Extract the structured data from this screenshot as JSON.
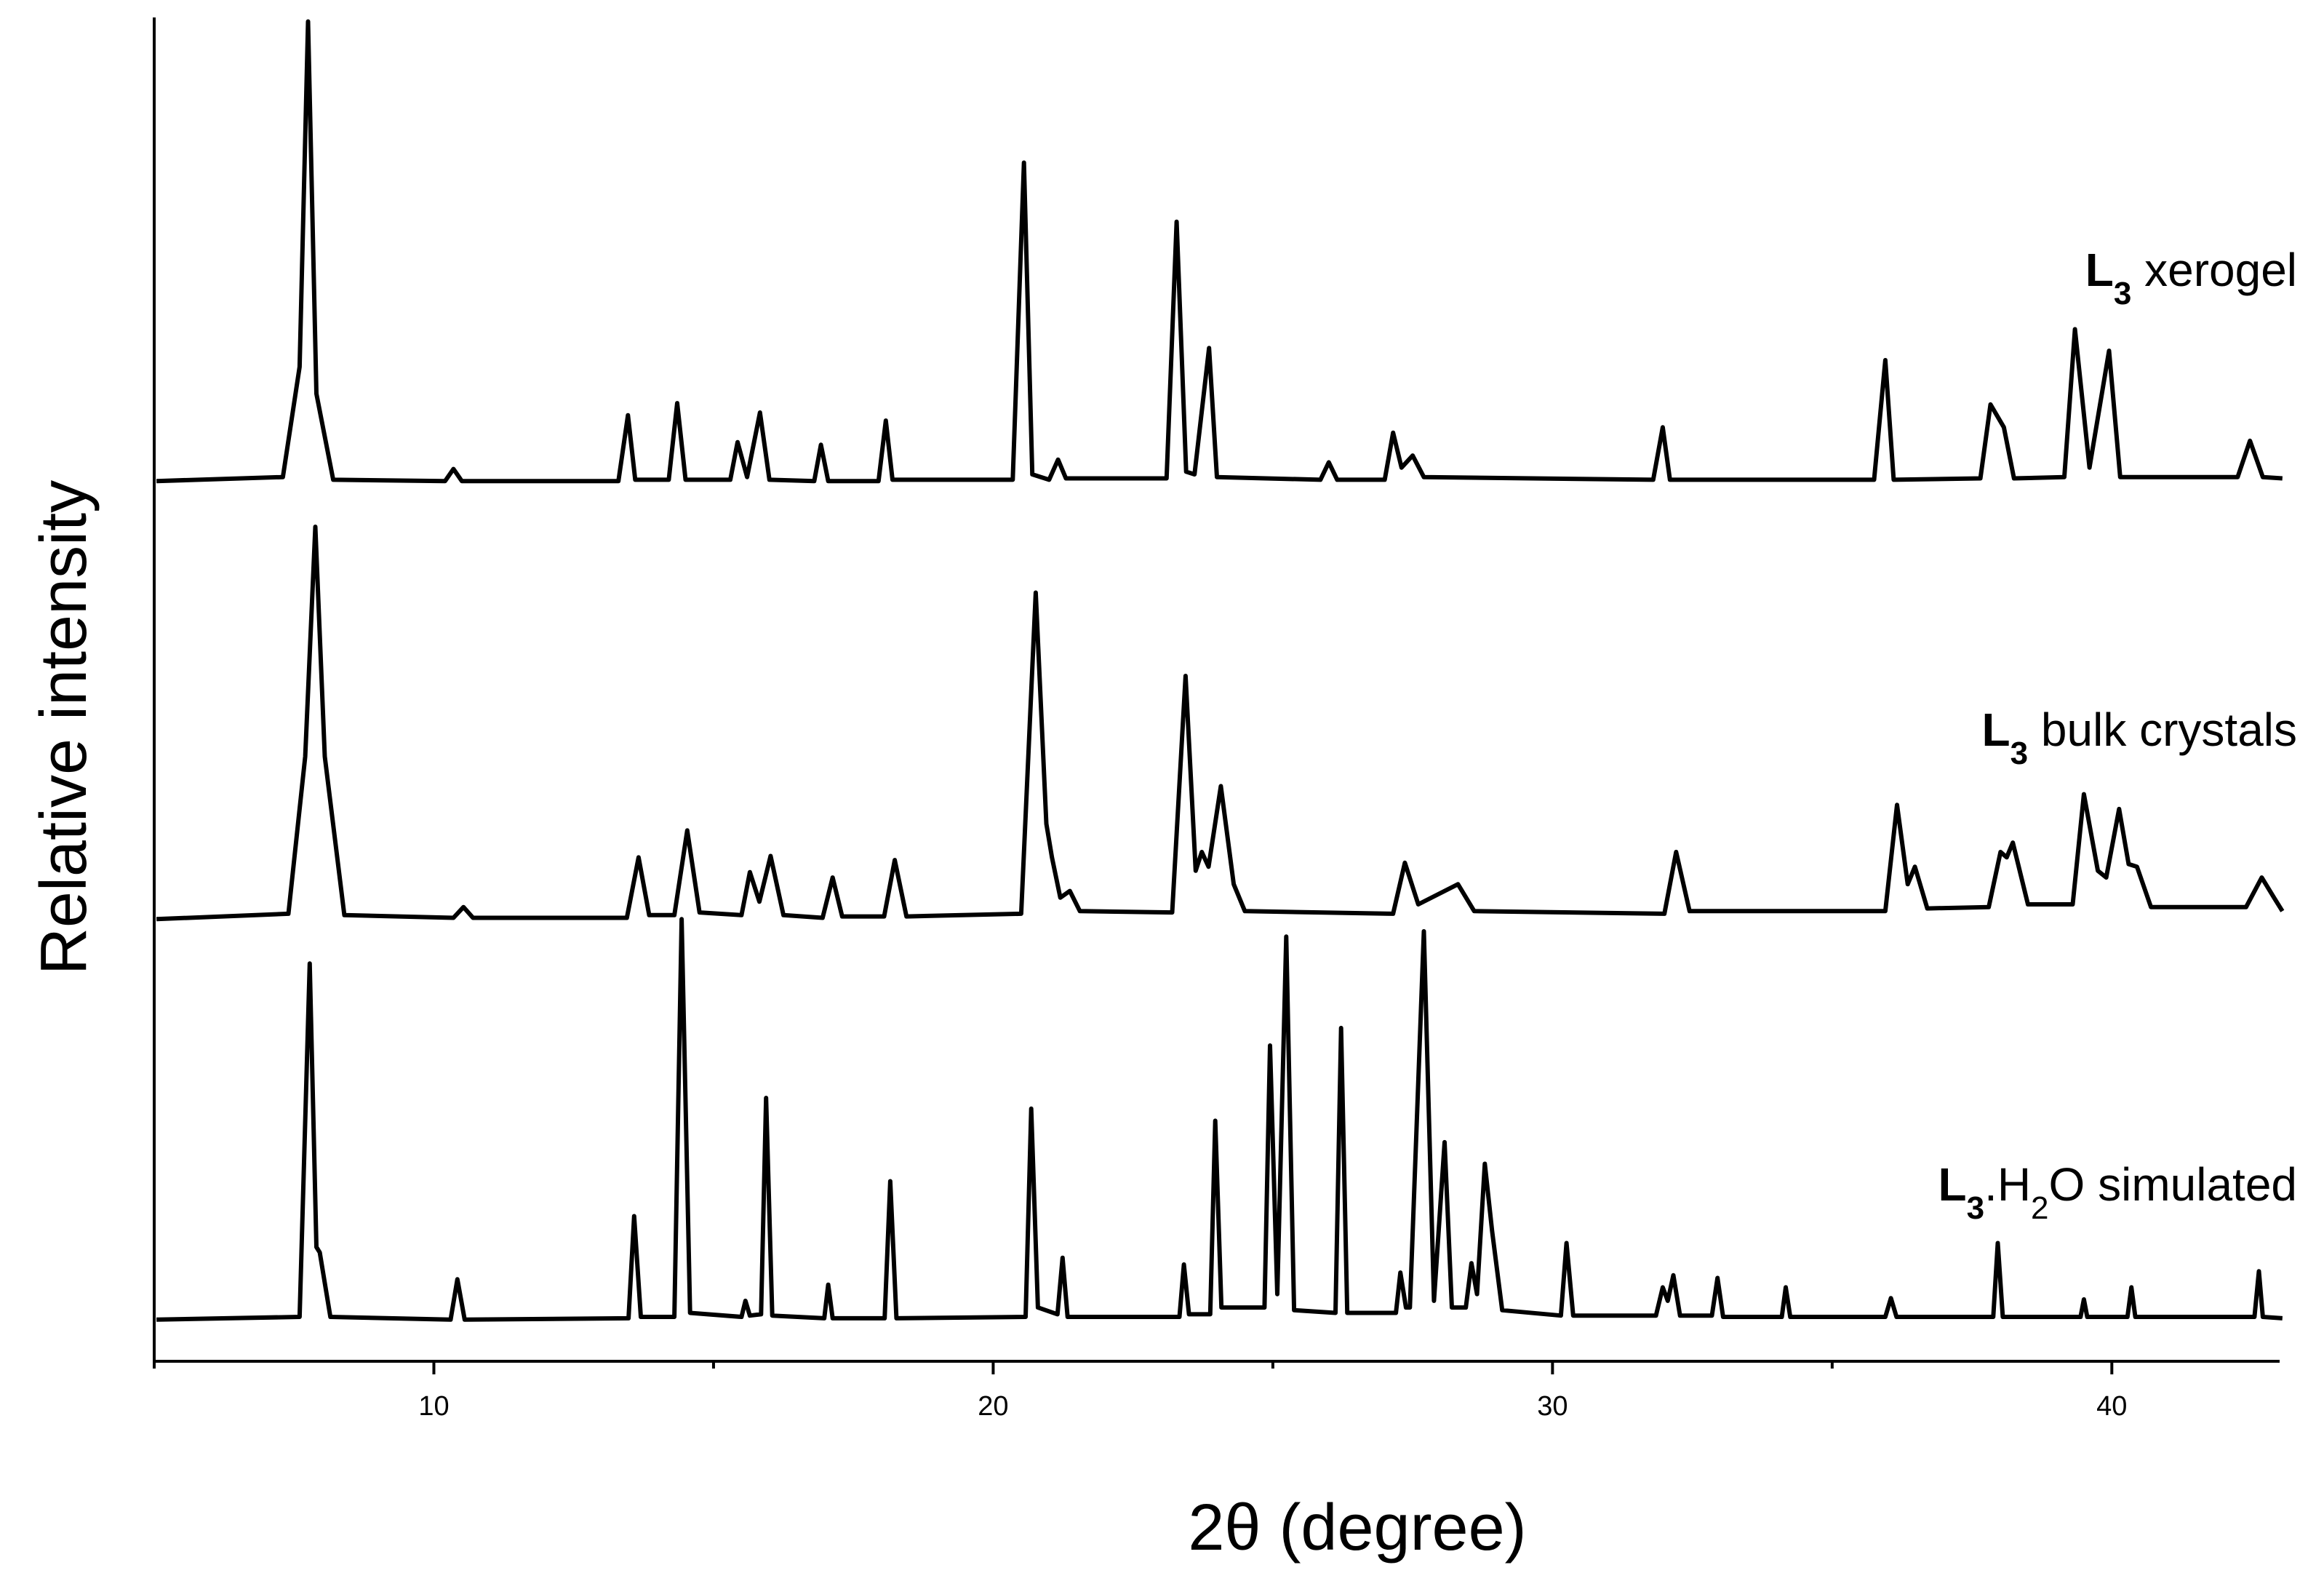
{
  "chart_data": {
    "type": "line",
    "xlabel": "2θ (degree)",
    "ylabel": "Relative intensity",
    "xlim": [
      5,
      43
    ],
    "xticks": [
      10,
      20,
      30,
      40
    ],
    "xminorticks": [
      5,
      15,
      25,
      35
    ],
    "ylim": [
      0,
      100
    ],
    "grid": false,
    "series": [
      {
        "name": "L3 xerogel",
        "color": "#000000",
        "x": [
          5.04,
          7.3,
          7.6,
          7.75,
          7.9,
          8.2,
          10.2,
          10.35,
          10.5,
          13.3,
          13.47,
          13.6,
          14.2,
          14.35,
          14.5,
          15.3,
          15.43,
          15.6,
          15.83,
          16.0,
          16.8,
          16.92,
          17.05,
          17.95,
          18.08,
          18.2,
          20.35,
          20.55,
          20.7,
          21.0,
          21.16,
          21.3,
          23.1,
          23.28,
          23.45,
          23.6,
          23.86,
          24.0,
          25.85,
          26.0,
          26.15,
          27.0,
          27.15,
          27.3,
          27.5,
          27.7,
          31.8,
          31.97,
          32.1,
          35.75,
          35.95,
          36.1,
          37.65,
          37.83,
          38.07,
          38.25,
          39.15,
          39.34,
          39.6,
          39.95,
          40.15,
          42.25,
          42.47,
          42.7,
          43.05
        ],
        "values": [
          65.5,
          65.8,
          74,
          99.7,
          72,
          65.6,
          65.5,
          66.4,
          65.5,
          65.5,
          70.4,
          65.6,
          65.6,
          71.3,
          65.6,
          65.6,
          68.4,
          65.8,
          70.6,
          65.6,
          65.5,
          68.2,
          65.5,
          65.5,
          70.0,
          65.6,
          65.6,
          89.2,
          66.0,
          65.6,
          67.1,
          65.7,
          65.7,
          84.8,
          66.2,
          66.0,
          75.4,
          65.8,
          65.6,
          66.9,
          65.6,
          65.6,
          69.1,
          66.5,
          67.4,
          65.8,
          65.6,
          69.5,
          65.6,
          65.6,
          74.5,
          65.6,
          65.7,
          71.2,
          69.5,
          65.7,
          65.8,
          76.8,
          66.5,
          75.2,
          65.8,
          65.8,
          68.5,
          65.8,
          65.7
        ]
      },
      {
        "name": "L3 bulk crystals",
        "color": "#000000",
        "x": [
          5.04,
          7.4,
          7.7,
          7.88,
          8.05,
          8.4,
          10.35,
          10.53,
          10.7,
          13.45,
          13.66,
          13.85,
          14.3,
          14.53,
          14.75,
          15.5,
          15.65,
          15.82,
          16.02,
          16.25,
          16.95,
          17.13,
          17.3,
          18.05,
          18.24,
          18.45,
          20.5,
          20.76,
          20.95,
          21.05,
          21.2,
          21.37,
          21.55,
          23.2,
          23.44,
          23.62,
          23.73,
          23.85,
          24.07,
          24.3,
          24.5,
          27.15,
          27.36,
          27.6,
          28.31,
          28.6,
          32.0,
          32.21,
          32.45,
          35.95,
          36.16,
          36.35,
          36.48,
          36.7,
          37.8,
          38.01,
          38.12,
          38.23,
          38.5,
          39.3,
          39.5,
          39.75,
          39.9,
          40.13,
          40.3,
          40.45,
          40.7,
          42.4,
          42.68,
          42.9,
          43.05
        ],
        "values": [
          32.9,
          33.3,
          45,
          62.1,
          45,
          33.2,
          33.0,
          33.8,
          33.0,
          33.0,
          37.5,
          33.2,
          33.2,
          39.5,
          33.4,
          33.2,
          36.4,
          34.2,
          37.6,
          33.2,
          33.0,
          36.0,
          33.1,
          33.1,
          37.3,
          33.1,
          33.3,
          57.2,
          40,
          37.5,
          34.5,
          35.0,
          33.5,
          33.4,
          51.0,
          36.5,
          37.9,
          36.8,
          42.8,
          35.5,
          33.5,
          33.3,
          37.1,
          34.0,
          35.5,
          33.5,
          33.3,
          37.9,
          33.5,
          33.5,
          41.4,
          35.5,
          36.8,
          33.7,
          33.8,
          37.9,
          37.5,
          38.6,
          34.0,
          34.0,
          42.2,
          36.5,
          36.0,
          41.1,
          37.0,
          36.8,
          33.8,
          33.8,
          36.0,
          34.5,
          33.5
        ]
      },
      {
        "name": "L3.H2O simulated",
        "color": "#000000",
        "x": [
          5.04,
          7.6,
          7.78,
          7.9,
          7.96,
          8.15,
          10.3,
          10.42,
          10.55,
          13.48,
          13.58,
          13.7,
          14.3,
          14.43,
          14.58,
          15.5,
          15.57,
          15.65,
          15.85,
          15.94,
          16.05,
          16.98,
          17.05,
          17.13,
          18.06,
          18.16,
          18.27,
          20.58,
          20.68,
          20.8,
          21.15,
          21.24,
          21.33,
          23.33,
          23.41,
          23.5,
          23.88,
          23.97,
          24.08,
          24.85,
          24.95,
          25.08,
          25.24,
          25.38,
          26.12,
          26.22,
          26.33,
          27.2,
          27.28,
          27.38,
          27.45,
          27.7,
          27.88,
          28.07,
          28.2,
          28.45,
          28.55,
          28.65,
          28.79,
          28.92,
          29.1,
          30.15,
          30.25,
          30.37,
          31.85,
          31.97,
          32.06,
          32.16,
          32.28,
          32.85,
          32.95,
          33.05,
          34.1,
          34.17,
          34.25,
          35.95,
          36.05,
          36.15,
          37.88,
          37.96,
          38.05,
          39.44,
          39.5,
          39.56,
          40.28,
          40.35,
          40.42,
          42.55,
          42.63,
          42.7,
          43.05
        ],
        "values": [
          3.1,
          3.3,
          29.6,
          8.5,
          8.1,
          3.3,
          3.1,
          6.1,
          3.1,
          3.2,
          10.8,
          3.3,
          3.3,
          32.9,
          3.6,
          3.3,
          4.5,
          3.4,
          3.5,
          19.6,
          3.4,
          3.2,
          5.7,
          3.2,
          3.2,
          13.4,
          3.2,
          3.3,
          18.8,
          4.0,
          3.5,
          7.7,
          3.3,
          3.3,
          7.2,
          3.5,
          3.5,
          17.9,
          4.0,
          4.0,
          23.5,
          5.0,
          31.6,
          3.8,
          3.6,
          24.8,
          3.6,
          3.6,
          6.6,
          4.0,
          4.0,
          32.0,
          4.5,
          16.3,
          4.0,
          4.0,
          7.3,
          5.0,
          14.7,
          9.7,
          3.8,
          3.4,
          8.8,
          3.4,
          3.4,
          5.5,
          4.5,
          6.4,
          3.4,
          3.4,
          6.2,
          3.3,
          3.3,
          5.5,
          3.3,
          3.3,
          4.7,
          3.3,
          3.3,
          8.8,
          3.3,
          3.3,
          4.6,
          3.3,
          3.3,
          5.5,
          3.3,
          3.3,
          6.7,
          3.3,
          3.2
        ]
      }
    ]
  }
}
